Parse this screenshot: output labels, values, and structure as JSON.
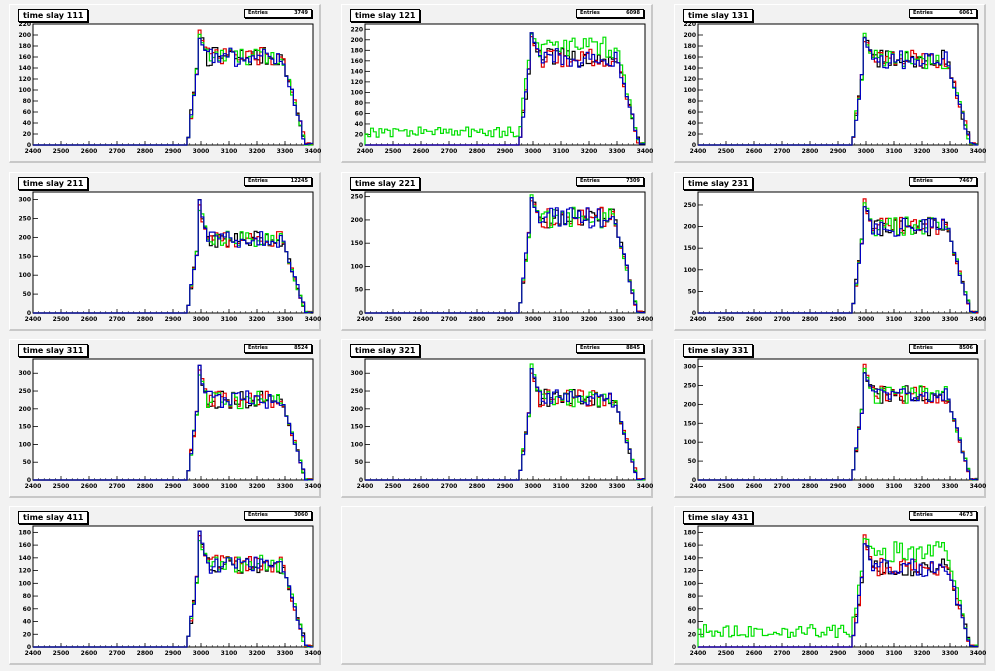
{
  "stats_label": "Entries",
  "colors": {
    "black": "#000000",
    "red": "#e00000",
    "green": "#00e000",
    "blue": "#0000c0",
    "background": "#f2f2f2"
  },
  "pads": [
    {
      "title": "time slay 111",
      "entries": "3749"
    },
    {
      "title": "time slay 121",
      "entries": "6098"
    },
    {
      "title": "time slay 131",
      "entries": "6061"
    },
    {
      "title": "time slay 211",
      "entries": "12245"
    },
    {
      "title": "time slay 221",
      "entries": "7309"
    },
    {
      "title": "time slay 231",
      "entries": "7467"
    },
    {
      "title": "time slay 311",
      "entries": "8524"
    },
    {
      "title": "time slay 321",
      "entries": "8845"
    },
    {
      "title": "time slay 331",
      "entries": "8506"
    },
    {
      "title": "time slay 411",
      "entries": "3060"
    },
    null,
    {
      "title": "time slay 431",
      "entries": "4673"
    }
  ],
  "chart_data": [
    {
      "type": "line",
      "title": "time slay 111",
      "x_range": [
        2400,
        3400
      ],
      "x_ticks": [
        2400,
        2500,
        2600,
        2700,
        2800,
        2900,
        3000,
        3100,
        3200,
        3300,
        3400
      ],
      "y_range": [
        0,
        220
      ],
      "y_ticks": [
        0,
        20,
        40,
        60,
        80,
        100,
        120,
        140,
        160,
        180,
        200,
        220
      ],
      "shape": {
        "rise_start": 2950,
        "rise_end": 2995,
        "fall_start": 3290,
        "fall_end": 3375,
        "plateau": 160,
        "peak": 215,
        "baseline": 0
      },
      "series": [
        {
          "color": "#000000",
          "values": []
        },
        {
          "color": "#e00000",
          "values": []
        },
        {
          "color": "#00e000",
          "values": []
        },
        {
          "color": "#0000c0",
          "values": []
        }
      ]
    },
    {
      "type": "line",
      "title": "time slay 121",
      "x_range": [
        2400,
        3400
      ],
      "x_ticks": [
        2400,
        2500,
        2600,
        2700,
        2800,
        2900,
        3000,
        3100,
        3200,
        3300,
        3400
      ],
      "y_range": [
        0,
        230
      ],
      "y_ticks": [
        0,
        20,
        40,
        60,
        80,
        100,
        120,
        140,
        160,
        180,
        200,
        220
      ],
      "shape": {
        "rise_start": 2950,
        "rise_end": 2995,
        "fall_start": 3300,
        "fall_end": 3380,
        "plateau": 165,
        "peak": 220,
        "baseline": 0,
        "green_baseline": 25,
        "green_plateau": 185
      },
      "series": [
        {
          "color": "#000000",
          "values": []
        },
        {
          "color": "#e00000",
          "values": []
        },
        {
          "color": "#00e000",
          "values": []
        },
        {
          "color": "#0000c0",
          "values": []
        }
      ]
    },
    {
      "type": "line",
      "title": "time slay 131",
      "x_range": [
        2400,
        3400
      ],
      "x_ticks": [
        2400,
        2500,
        2600,
        2700,
        2800,
        2900,
        3000,
        3100,
        3200,
        3300,
        3400
      ],
      "y_range": [
        0,
        220
      ],
      "y_ticks": [
        0,
        20,
        40,
        60,
        80,
        100,
        120,
        140,
        160,
        180,
        200,
        220
      ],
      "shape": {
        "rise_start": 2950,
        "rise_end": 2995,
        "fall_start": 3290,
        "fall_end": 3375,
        "plateau": 155,
        "peak": 210,
        "baseline": 0
      },
      "series": [
        {
          "color": "#000000",
          "values": []
        },
        {
          "color": "#e00000",
          "values": []
        },
        {
          "color": "#00e000",
          "values": []
        },
        {
          "color": "#0000c0",
          "values": []
        }
      ]
    },
    {
      "type": "line",
      "title": "time slay 211",
      "x_range": [
        2400,
        3400
      ],
      "x_ticks": [
        2400,
        2500,
        2600,
        2700,
        2800,
        2900,
        3000,
        3100,
        3200,
        3300,
        3400
      ],
      "y_range": [
        0,
        320
      ],
      "y_ticks": [
        0,
        50,
        100,
        150,
        200,
        250,
        300
      ],
      "shape": {
        "rise_start": 2950,
        "rise_end": 2995,
        "fall_start": 3290,
        "fall_end": 3375,
        "plateau": 195,
        "peak": 300,
        "baseline": 0
      },
      "series": [
        {
          "color": "#000000",
          "values": []
        },
        {
          "color": "#e00000",
          "values": []
        },
        {
          "color": "#00e000",
          "values": []
        },
        {
          "color": "#0000c0",
          "values": []
        }
      ]
    },
    {
      "type": "line",
      "title": "time slay 221",
      "x_range": [
        2400,
        3400
      ],
      "x_ticks": [
        2400,
        2500,
        2600,
        2700,
        2800,
        2900,
        3000,
        3100,
        3200,
        3300,
        3400
      ],
      "y_range": [
        0,
        260
      ],
      "y_ticks": [
        0,
        50,
        100,
        150,
        200,
        250
      ],
      "shape": {
        "rise_start": 2950,
        "rise_end": 2995,
        "fall_start": 3290,
        "fall_end": 3375,
        "plateau": 205,
        "peak": 255,
        "baseline": 0
      },
      "series": [
        {
          "color": "#000000",
          "values": []
        },
        {
          "color": "#e00000",
          "values": []
        },
        {
          "color": "#00e000",
          "values": []
        },
        {
          "color": "#0000c0",
          "values": []
        }
      ]
    },
    {
      "type": "line",
      "title": "time slay 231",
      "x_range": [
        2400,
        3400
      ],
      "x_ticks": [
        2400,
        2500,
        2600,
        2700,
        2800,
        2900,
        3000,
        3100,
        3200,
        3300,
        3400
      ],
      "y_range": [
        0,
        280
      ],
      "y_ticks": [
        0,
        50,
        100,
        150,
        200,
        250
      ],
      "shape": {
        "rise_start": 2950,
        "rise_end": 2995,
        "fall_start": 3290,
        "fall_end": 3375,
        "plateau": 200,
        "peak": 265,
        "baseline": 0
      },
      "series": [
        {
          "color": "#000000",
          "values": []
        },
        {
          "color": "#e00000",
          "values": []
        },
        {
          "color": "#00e000",
          "values": []
        },
        {
          "color": "#0000c0",
          "values": []
        }
      ]
    },
    {
      "type": "line",
      "title": "time slay 311",
      "x_range": [
        2400,
        3400
      ],
      "x_ticks": [
        2400,
        2500,
        2600,
        2700,
        2800,
        2900,
        3000,
        3100,
        3200,
        3300,
        3400
      ],
      "y_range": [
        0,
        340
      ],
      "y_ticks": [
        0,
        50,
        100,
        150,
        200,
        250,
        300
      ],
      "shape": {
        "rise_start": 2950,
        "rise_end": 2995,
        "fall_start": 3290,
        "fall_end": 3375,
        "plateau": 225,
        "peak": 325,
        "baseline": 0
      },
      "series": [
        {
          "color": "#000000",
          "values": []
        },
        {
          "color": "#e00000",
          "values": []
        },
        {
          "color": "#00e000",
          "values": []
        },
        {
          "color": "#0000c0",
          "values": []
        }
      ]
    },
    {
      "type": "line",
      "title": "time slay 321",
      "x_range": [
        2400,
        3400
      ],
      "x_ticks": [
        2400,
        2500,
        2600,
        2700,
        2800,
        2900,
        3000,
        3100,
        3200,
        3300,
        3400
      ],
      "y_range": [
        0,
        340
      ],
      "y_ticks": [
        0,
        50,
        100,
        150,
        200,
        250,
        300
      ],
      "shape": {
        "rise_start": 2950,
        "rise_end": 2995,
        "fall_start": 3290,
        "fall_end": 3375,
        "plateau": 230,
        "peak": 330,
        "baseline": 0
      },
      "series": [
        {
          "color": "#000000",
          "values": []
        },
        {
          "color": "#e00000",
          "values": []
        },
        {
          "color": "#00e000",
          "values": []
        },
        {
          "color": "#0000c0",
          "values": []
        }
      ]
    },
    {
      "type": "line",
      "title": "time slay 331",
      "x_range": [
        2400,
        3400
      ],
      "x_ticks": [
        2400,
        2500,
        2600,
        2700,
        2800,
        2900,
        3000,
        3100,
        3200,
        3300,
        3400
      ],
      "y_range": [
        0,
        320
      ],
      "y_ticks": [
        0,
        50,
        100,
        150,
        200,
        250,
        300
      ],
      "shape": {
        "rise_start": 2950,
        "rise_end": 2995,
        "fall_start": 3290,
        "fall_end": 3375,
        "plateau": 225,
        "peak": 310,
        "baseline": 0
      },
      "series": [
        {
          "color": "#000000",
          "values": []
        },
        {
          "color": "#e00000",
          "values": []
        },
        {
          "color": "#00e000",
          "values": []
        },
        {
          "color": "#0000c0",
          "values": []
        }
      ]
    },
    {
      "type": "line",
      "title": "time slay 411",
      "x_range": [
        2400,
        3400
      ],
      "x_ticks": [
        2400,
        2500,
        2600,
        2700,
        2800,
        2900,
        3000,
        3100,
        3200,
        3300,
        3400
      ],
      "y_range": [
        0,
        190
      ],
      "y_ticks": [
        0,
        20,
        40,
        60,
        80,
        100,
        120,
        140,
        160,
        180
      ],
      "shape": {
        "rise_start": 2950,
        "rise_end": 2995,
        "fall_start": 3290,
        "fall_end": 3375,
        "plateau": 130,
        "peak": 185,
        "baseline": 0
      },
      "series": [
        {
          "color": "#000000",
          "values": []
        },
        {
          "color": "#e00000",
          "values": []
        },
        {
          "color": "#00e000",
          "values": []
        },
        {
          "color": "#0000c0",
          "values": []
        }
      ]
    },
    null,
    {
      "type": "line",
      "title": "time slay 431",
      "x_range": [
        2400,
        3400
      ],
      "x_ticks": [
        2400,
        2500,
        2600,
        2700,
        2800,
        2900,
        3000,
        3100,
        3200,
        3300,
        3400
      ],
      "y_range": [
        0,
        190
      ],
      "y_ticks": [
        0,
        20,
        40,
        60,
        80,
        100,
        120,
        140,
        160,
        180
      ],
      "shape": {
        "rise_start": 2950,
        "rise_end": 2995,
        "fall_start": 3290,
        "fall_end": 3375,
        "plateau": 125,
        "peak": 180,
        "baseline": 0,
        "green_baseline": 25,
        "green_plateau": 150
      },
      "series": [
        {
          "color": "#000000",
          "values": []
        },
        {
          "color": "#e00000",
          "values": []
        },
        {
          "color": "#00e000",
          "values": []
        },
        {
          "color": "#0000c0",
          "values": []
        }
      ]
    }
  ]
}
